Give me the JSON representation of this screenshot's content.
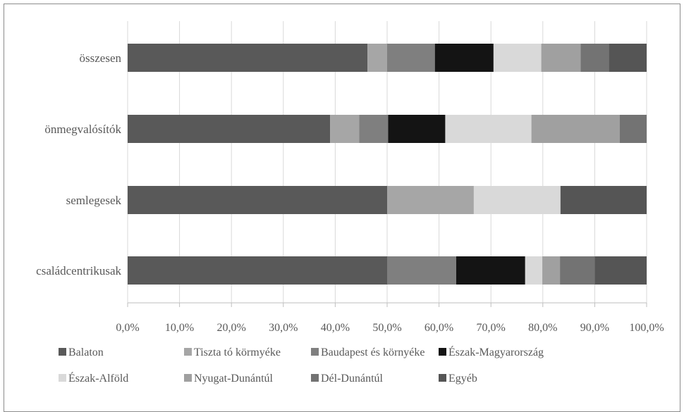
{
  "chart_data": {
    "type": "bar",
    "orientation": "horizontal",
    "stacked": true,
    "percent": true,
    "categories": [
      "összesen",
      "önmegvalósítók",
      "semlegesek",
      "családcentrikusak"
    ],
    "xlim": [
      0,
      100
    ],
    "x_ticks": [
      "0,0%",
      "10,0%",
      "20,0%",
      "30,0%",
      "40,0%",
      "50,0%",
      "60,0%",
      "70,0%",
      "80,0%",
      "90,0%",
      "100,0%"
    ],
    "grid": "vertical",
    "legend_position": "bottom",
    "series": [
      {
        "name": "Balaton",
        "color": "#595959",
        "values": [
          46.2,
          39.0,
          50.0,
          50.0
        ]
      },
      {
        "name": "Tiszta tó körmyéke",
        "color": "#a6a6a6",
        "values": [
          3.8,
          5.6,
          16.7,
          0
        ]
      },
      {
        "name": "Baudapest és környéke",
        "color": "#7f7f7f",
        "values": [
          9.2,
          5.6,
          0,
          13.3
        ]
      },
      {
        "name": "Észak-Magyarország",
        "color": "#141414",
        "values": [
          11.3,
          11.0,
          0,
          13.3
        ]
      },
      {
        "name": "Észak-Alföld",
        "color": "#d9d9d9",
        "values": [
          9.2,
          16.6,
          16.7,
          3.3
        ]
      },
      {
        "name": "Nyugat-Dunántúl",
        "color": "#a0a0a0",
        "values": [
          7.6,
          17.0,
          0,
          3.4
        ]
      },
      {
        "name": "Dél-Dunántúl",
        "color": "#737373",
        "values": [
          5.4,
          5.2,
          0,
          6.7
        ]
      },
      {
        "name": "Egyéb",
        "color": "#555555",
        "values": [
          7.3,
          0,
          16.6,
          10.0
        ]
      }
    ]
  }
}
